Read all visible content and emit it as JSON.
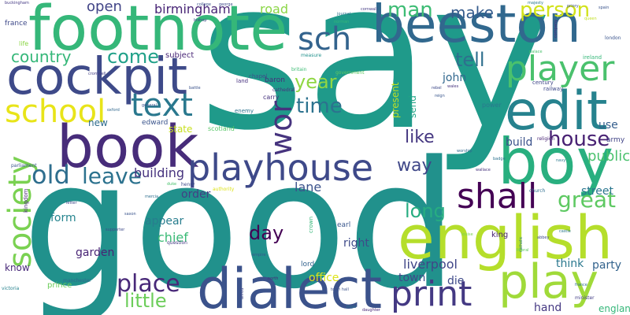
{
  "words": [
    {
      "text": "say",
      "color": "#1f9a8a"
    },
    {
      "text": "good",
      "color": "#21918c"
    },
    {
      "text": "footnote",
      "color": "#35b779"
    },
    {
      "text": "beeston",
      "color": "#31688e"
    },
    {
      "text": "cockpit",
      "color": "#3e4a89"
    },
    {
      "text": "book",
      "color": "#472c7a"
    },
    {
      "text": "english",
      "color": "#b5de2b"
    },
    {
      "text": "dialect",
      "color": "#3b528b"
    },
    {
      "text": "boy",
      "color": "#29af7f"
    },
    {
      "text": "edit",
      "color": "#26828e"
    },
    {
      "text": "play",
      "color": "#a0da39"
    },
    {
      "text": "player",
      "color": "#4ac16d"
    },
    {
      "text": "playhouse",
      "color": "#3e4989"
    },
    {
      "text": "school",
      "color": "#e8e419"
    },
    {
      "text": "text",
      "color": "#2a788e"
    },
    {
      "text": "society",
      "color": "#7ad151"
    },
    {
      "text": "print",
      "color": "#443983"
    },
    {
      "text": "shall",
      "color": "#440154"
    },
    {
      "text": "sch",
      "color": "#33638d"
    },
    {
      "text": "wor",
      "color": "#46337e"
    },
    {
      "text": "old",
      "color": "#2e6e8e"
    },
    {
      "text": "leave",
      "color": "#2c728e"
    },
    {
      "text": "great",
      "color": "#5ec962"
    },
    {
      "text": "place",
      "color": "#482878"
    },
    {
      "text": "house",
      "color": "#482173"
    },
    {
      "text": "man",
      "color": "#3dbc74"
    },
    {
      "text": "time",
      "color": "#2c728e"
    },
    {
      "text": "person",
      "color": "#d2e21b"
    },
    {
      "text": "day",
      "color": "#440154"
    },
    {
      "text": "little",
      "color": "#6ccd5a"
    },
    {
      "text": "long",
      "color": "#27ad81"
    },
    {
      "text": "way",
      "color": "#3f4788"
    },
    {
      "text": "tell",
      "color": "#2e6f8e"
    },
    {
      "text": "country",
      "color": "#35b779"
    },
    {
      "text": "come",
      "color": "#1fa088"
    },
    {
      "text": "like",
      "color": "#453781"
    },
    {
      "text": "year",
      "color": "#90d743"
    },
    {
      "text": "make",
      "color": "#365c8d"
    },
    {
      "text": "birmingham",
      "color": "#482576"
    },
    {
      "text": "building",
      "color": "#46337e"
    },
    {
      "text": "liverpool",
      "color": "#404688"
    },
    {
      "text": "open",
      "color": "#414487"
    },
    {
      "text": "public",
      "color": "#4ac16d"
    },
    {
      "text": "lane",
      "color": "#3b528b"
    },
    {
      "text": "street",
      "color": "#2a768e"
    },
    {
      "text": "road",
      "color": "#8bd646"
    },
    {
      "text": "garden",
      "color": "#482475"
    },
    {
      "text": "chief",
      "color": "#3aba76"
    },
    {
      "text": "appear",
      "color": "#287d8e"
    },
    {
      "text": "order",
      "color": "#433e85"
    },
    {
      "text": "town",
      "color": "#3e4989"
    },
    {
      "text": "right",
      "color": "#3e4a89"
    },
    {
      "text": "form",
      "color": "#25848e"
    },
    {
      "text": "john",
      "color": "#31688e"
    },
    {
      "text": "build",
      "color": "#3b528b"
    },
    {
      "text": "use",
      "color": "#355f8d"
    },
    {
      "text": "think",
      "color": "#2a788e"
    },
    {
      "text": "party",
      "color": "#33638d"
    },
    {
      "text": "hand",
      "color": "#453882"
    },
    {
      "text": "england",
      "color": "#35b779"
    },
    {
      "text": "die",
      "color": "#3e4a89"
    },
    {
      "text": "office",
      "color": "#dde318"
    },
    {
      "text": "present",
      "color": "#bddf26"
    },
    {
      "text": "send",
      "color": "#20a486"
    },
    {
      "text": "state",
      "color": "#c8e020"
    },
    {
      "text": "new",
      "color": "#2f6c8e"
    },
    {
      "text": "know",
      "color": "#482878"
    },
    {
      "text": "subject",
      "color": "#482576"
    },
    {
      "text": "king",
      "color": "#482071"
    },
    {
      "text": "edward",
      "color": "#3a548c"
    },
    {
      "text": "baron",
      "color": "#472d7b"
    },
    {
      "text": "army",
      "color": "#414487"
    },
    {
      "text": "earl",
      "color": "#39568c"
    },
    {
      "text": "lord",
      "color": "#33638d"
    },
    {
      "text": "prince",
      "color": "#6ccd5a"
    },
    {
      "text": "carry",
      "color": "#46337e"
    },
    {
      "text": "land",
      "color": "#46307e"
    },
    {
      "text": "chapel",
      "color": "#3b528b"
    },
    {
      "text": "scotland",
      "color": "#56c667"
    },
    {
      "text": "france",
      "color": "#3e4989"
    },
    {
      "text": "life",
      "color": "#8bd646"
    },
    {
      "text": "power",
      "color": "#2a788e"
    },
    {
      "text": "century",
      "color": "#3f4788"
    },
    {
      "text": "railway",
      "color": "#3e4989"
    },
    {
      "text": "enemy",
      "color": "#2c728e"
    },
    {
      "text": "cathedral",
      "color": "#46337e"
    },
    {
      "text": "parliament",
      "color": "#39568c"
    },
    {
      "text": "religion",
      "color": "#482475"
    },
    {
      "text": "kingdom",
      "color": "#482878"
    },
    {
      "text": "ireland",
      "color": "#35b779"
    },
    {
      "text": "london",
      "color": "#3a548c"
    },
    {
      "text": "question",
      "color": "#443983"
    },
    {
      "text": "government",
      "color": "#5ec962"
    },
    {
      "text": "manchester",
      "color": "#31688e"
    },
    {
      "text": "minister",
      "color": "#433e85"
    },
    {
      "text": "crown",
      "color": "#35b779"
    },
    {
      "text": "church",
      "color": "#2e6e8e"
    },
    {
      "text": "measure",
      "color": "#21918c"
    },
    {
      "text": "britain",
      "color": "#3dbc74"
    },
    {
      "text": "victoria",
      "color": "#26828e"
    },
    {
      "text": "buckingham",
      "color": "#443983"
    },
    {
      "text": "majesty",
      "color": "#2a788e"
    },
    {
      "text": "henry",
      "color": "#3e4a89"
    },
    {
      "text": "duke",
      "color": "#4ac16d"
    },
    {
      "text": "alfred",
      "color": "#3f4788"
    },
    {
      "text": "north",
      "color": "#482576"
    },
    {
      "text": "badge",
      "color": "#2c728e"
    },
    {
      "text": "general",
      "color": "#3a548c"
    },
    {
      "text": "catholic",
      "color": "#2a768e"
    },
    {
      "text": "wallace",
      "color": "#46337e"
    },
    {
      "text": "rebel",
      "color": "#3e4989"
    },
    {
      "text": "journal",
      "color": "#2c728e"
    },
    {
      "text": "battle",
      "color": "#3b528b"
    },
    {
      "text": "george",
      "color": "#3e4989"
    },
    {
      "text": "louise",
      "color": "#7ad151"
    },
    {
      "text": "empire",
      "color": "#39568c"
    },
    {
      "text": "authority",
      "color": "#dde318"
    },
    {
      "text": "mercia",
      "color": "#2e6e8e"
    },
    {
      "text": "palace",
      "color": "#4ac16d"
    },
    {
      "text": "spain",
      "color": "#3a548c"
    },
    {
      "text": "queen",
      "color": "#c2df23"
    },
    {
      "text": "castle",
      "color": "#2a788e"
    },
    {
      "text": "supporter",
      "color": "#3e4989"
    },
    {
      "text": "college",
      "color": "#3b528b"
    },
    {
      "text": "wales",
      "color": "#46337e"
    },
    {
      "text": "reign",
      "color": "#39568c"
    },
    {
      "text": "pope",
      "color": "#2c728e"
    },
    {
      "text": "letter",
      "color": "#3f4788"
    },
    {
      "text": "daughter",
      "color": "#482878"
    },
    {
      "text": "worship",
      "color": "#31688e"
    },
    {
      "text": "abbey",
      "color": "#3e4989"
    },
    {
      "text": "town hall",
      "color": "#3b528b"
    },
    {
      "text": "navy",
      "color": "#2a788e"
    },
    {
      "text": "liberal",
      "color": "#5ec962"
    },
    {
      "text": "bishop",
      "color": "#3e4a89"
    },
    {
      "text": "cromwell",
      "color": "#433e85"
    },
    {
      "text": "france",
      "color": "#2e6e8e"
    },
    {
      "text": "company",
      "color": "#482576"
    },
    {
      "text": "norman",
      "color": "#35b779"
    },
    {
      "text": "saxon",
      "color": "#3a548c"
    },
    {
      "text": "oxford",
      "color": "#31688e"
    },
    {
      "text": "priory",
      "color": "#3b528b"
    },
    {
      "text": "cornwall",
      "color": "#443983"
    }
  ]
}
